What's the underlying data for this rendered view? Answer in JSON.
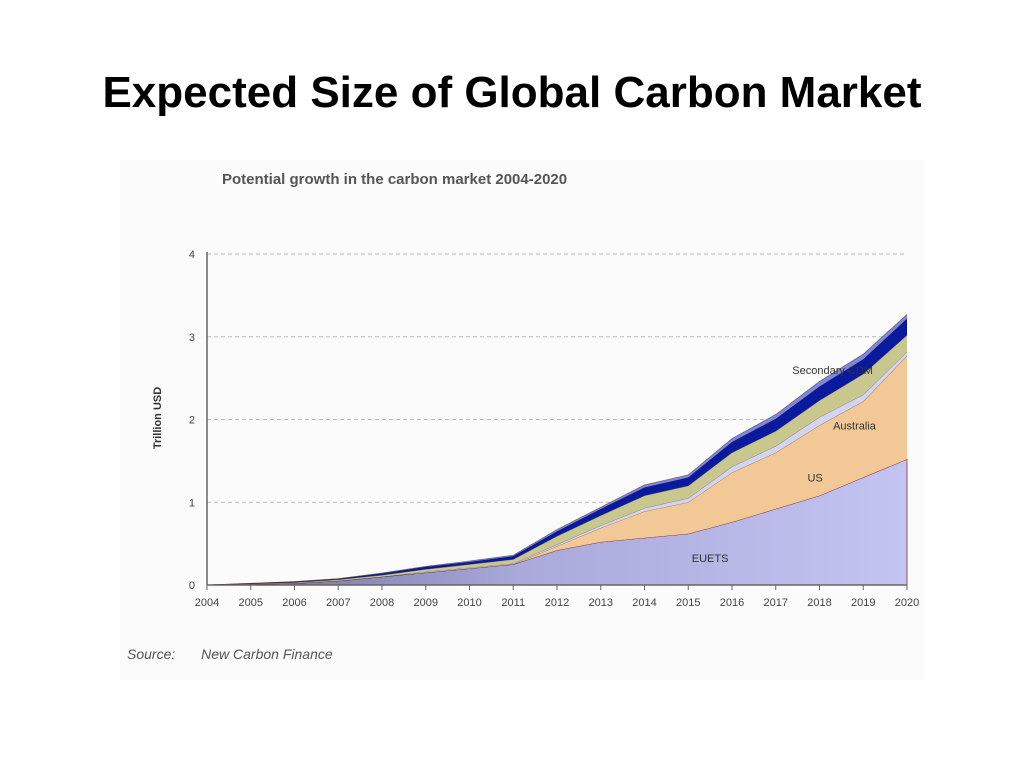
{
  "slide": {
    "title": "Expected Size of Global Carbon Market"
  },
  "source": {
    "label": "Source:",
    "value": "New Carbon Finance"
  },
  "chart_data": {
    "type": "area",
    "stacked": true,
    "title": "Potential growth in the carbon market 2004-2020",
    "xlabel": "",
    "ylabel": "Trillion USD",
    "categories": [
      "2004",
      "2005",
      "2006",
      "2007",
      "2008",
      "2009",
      "2010",
      "2011",
      "2012",
      "2013",
      "2014",
      "2015",
      "2016",
      "2017",
      "2018",
      "2019",
      "2020"
    ],
    "ylim": [
      0,
      4
    ],
    "yticks": [
      0,
      1,
      2,
      3,
      4
    ],
    "grid": true,
    "series": [
      {
        "name": "EUETS",
        "color": "#c4c4f2",
        "values": [
          0,
          0.01,
          0.02,
          0.05,
          0.1,
          0.15,
          0.2,
          0.25,
          0.42,
          0.52,
          0.57,
          0.62,
          0.76,
          0.92,
          1.08,
          1.3,
          1.52
        ]
      },
      {
        "name": "US",
        "color": "#f2c896",
        "values": [
          0,
          0,
          0,
          0,
          0,
          0,
          0,
          0,
          0.05,
          0.17,
          0.32,
          0.38,
          0.6,
          0.68,
          0.85,
          0.92,
          1.25
        ]
      },
      {
        "name": "",
        "color": "#d4d4f0",
        "values": [
          0,
          0,
          0,
          0,
          0,
          0.01,
          0.01,
          0.01,
          0.02,
          0.03,
          0.04,
          0.05,
          0.07,
          0.08,
          0.1,
          0.08,
          0.05
        ]
      },
      {
        "name": "Australia",
        "color": "#c8c88e",
        "values": [
          0,
          0.005,
          0.01,
          0.015,
          0.02,
          0.03,
          0.04,
          0.05,
          0.1,
          0.12,
          0.15,
          0.15,
          0.17,
          0.18,
          0.2,
          0.25,
          0.2
        ]
      },
      {
        "name": "Secondary CDM",
        "color": "#0a1a9e",
        "values": [
          0,
          0.005,
          0.01,
          0.01,
          0.02,
          0.03,
          0.03,
          0.04,
          0.06,
          0.08,
          0.1,
          0.1,
          0.13,
          0.15,
          0.17,
          0.18,
          0.2
        ]
      },
      {
        "name": "",
        "color": "#7f86de",
        "values": [
          0,
          0,
          0,
          0,
          0.005,
          0.005,
          0.01,
          0.01,
          0.02,
          0.02,
          0.03,
          0.03,
          0.04,
          0.05,
          0.06,
          0.06,
          0.05
        ]
      }
    ],
    "labels": [
      "Secondary CDM",
      "Australia",
      "US",
      "EUETS"
    ]
  }
}
